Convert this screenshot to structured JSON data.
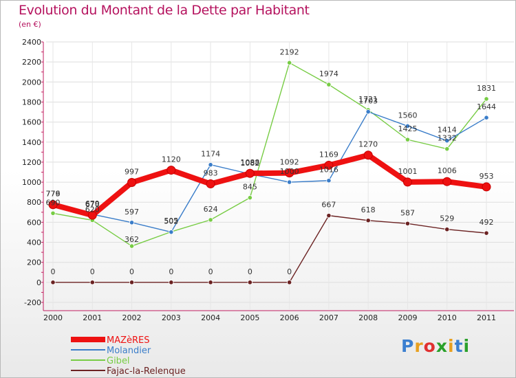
{
  "title": "Evolution du Montant de la Dette par Habitant",
  "subtitle": "(en €)",
  "logo": {
    "text": "Proxiti",
    "colors": [
      "#3b7fd0",
      "#e8a020",
      "#e03030",
      "#2aa02a",
      "#e8a020",
      "#3b7fd0",
      "#2aa02a"
    ]
  },
  "chart_data": {
    "type": "line",
    "x": [
      "2000",
      "2001",
      "2002",
      "2003",
      "2004",
      "2005",
      "2006",
      "2007",
      "2008",
      "2009",
      "2010",
      "2011"
    ],
    "ylim": [
      -200,
      2400
    ],
    "yticks": [
      "-200",
      "0",
      "200",
      "400",
      "600",
      "800",
      "1000",
      "1200",
      "1400",
      "1600",
      "1800",
      "2000",
      "2200",
      "2400"
    ],
    "grid": true,
    "legend_position": "bottom-left",
    "series": [
      {
        "name": "MAZèRES",
        "color": "#ee1111",
        "values": [
          776,
          670,
          997,
          1120,
          983,
          1088,
          1092,
          1169,
          1270,
          1001,
          1006,
          953
        ],
        "labels": [
          "776",
          "670",
          "997",
          "1120",
          "983",
          "1088",
          "1092",
          "1169",
          "1270",
          "1001",
          "1006",
          "953"
        ]
      },
      {
        "name": "Molandier",
        "color": "#3a7dc9",
        "values": [
          779,
          679,
          597,
          502,
          1174,
          1082,
          1000,
          1016,
          1703,
          1560,
          1414,
          1644
        ],
        "labels": [
          "779",
          "679",
          "597",
          "502",
          "1174",
          "1082",
          "1000",
          "1016",
          "1703",
          "1560",
          "1414",
          "1644"
        ]
      },
      {
        "name": "Gibel",
        "color": "#77cc44",
        "values": [
          690,
          620,
          362,
          505,
          624,
          845,
          2192,
          1974,
          1721,
          1425,
          1332,
          1831
        ],
        "labels": [
          "690",
          "620",
          "362",
          "505",
          "624",
          "845",
          "2192",
          "1974",
          "1721",
          "1425",
          "1332",
          "1831"
        ]
      },
      {
        "name": "Fajac-la-Relenque",
        "color": "#6b2222",
        "values": [
          0,
          0,
          0,
          0,
          0,
          0,
          0,
          667,
          618,
          587,
          529,
          492
        ],
        "labels": [
          "0",
          "0",
          "0",
          "0",
          "0",
          "0",
          "0",
          "667",
          "618",
          "587",
          "529",
          "492"
        ]
      }
    ]
  }
}
